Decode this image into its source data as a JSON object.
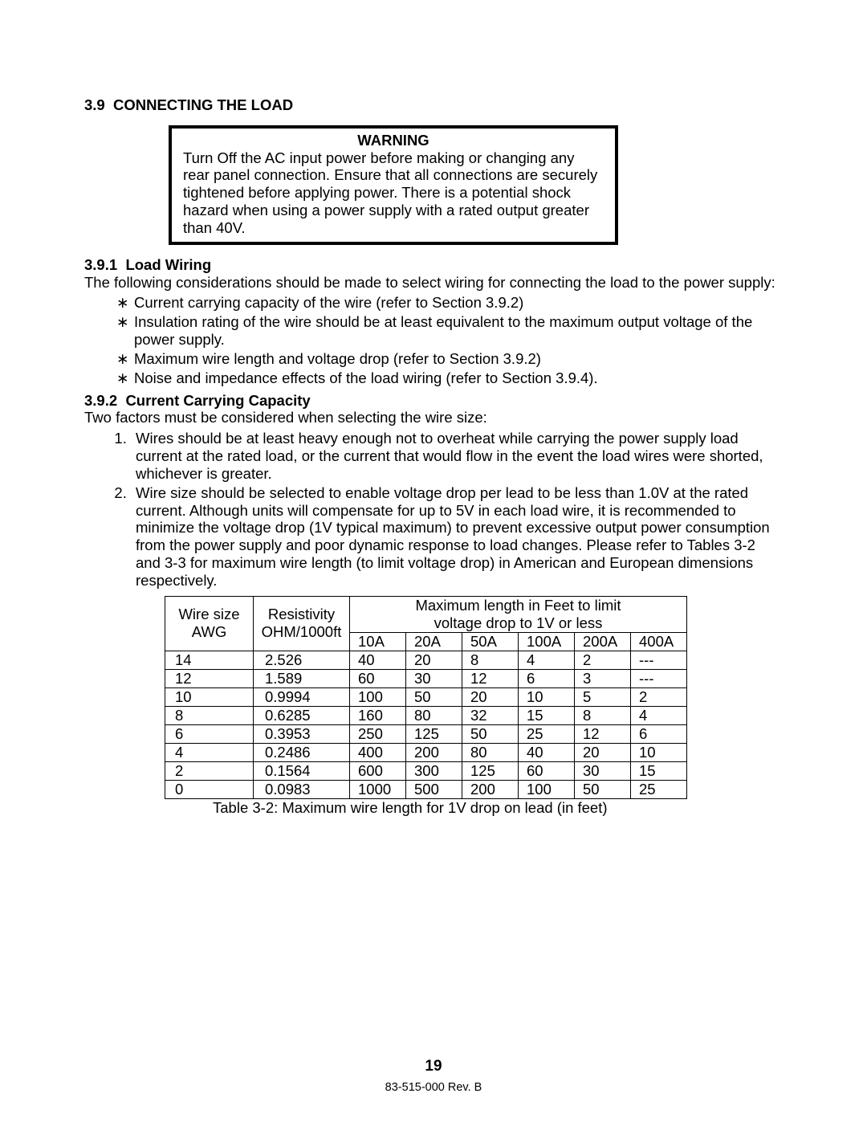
{
  "section": {
    "number": "3.9",
    "title": "CONNECTING THE LOAD"
  },
  "warning": {
    "heading": "WARNING",
    "text": "Turn Off the AC input power before making or changing any rear panel connection. Ensure that all connections are securely tightened before applying power. There is a potential shock hazard when using a power supply with a rated output greater than 40V."
  },
  "sub1": {
    "number": "3.9.1",
    "title": "Load Wiring",
    "intro": "The following considerations should be made to select wiring for connecting the load to the power supply:",
    "bullets": [
      "Current carrying capacity of the wire (refer to Section 3.9.2)",
      "Insulation rating of the wire should be at least equivalent to the maximum output voltage of the power supply.",
      "Maximum wire length and voltage drop (refer to Section 3.9.2)",
      "Noise and impedance effects of the load wiring (refer to Section 3.9.4)."
    ]
  },
  "sub2": {
    "number": "3.9.2",
    "title": "Current Carrying Capacity",
    "intro": "Two factors must be considered when selecting the wire size:",
    "items": [
      "Wires should be at least heavy enough not to overheat while carrying the power supply load current at the rated load, or the current that would flow in the event the load wires were shorted, whichever is greater.",
      "Wire size should be selected to enable voltage drop per lead to be less than 1.0V at the rated current. Although units will compensate for up to 5V in each load wire, it is recommended to minimize the voltage drop (1V typical maximum) to prevent excessive output power consumption from the power supply and poor dynamic response to load changes. Please refer to Tables 3-2 and 3-3 for maximum wire length (to limit voltage drop) in American and European dimensions respectively."
    ]
  },
  "table": {
    "caption": "Table 3-2: Maximum wire length for 1V drop on lead (in feet)",
    "col_awg_l1": "Wire size",
    "col_awg_l2": "AWG",
    "col_res_l1": "Resistivity",
    "col_res_l2": "OHM/1000ft",
    "span_l1": "Maximum length in Feet to limit",
    "span_l2": "voltage drop to 1V or less",
    "currents": [
      "10A",
      "20A",
      "50A",
      "100A",
      "200A",
      "400A"
    ],
    "rows": [
      {
        "awg": "14",
        "res": "2.526",
        "v": [
          "40",
          "20",
          "8",
          "4",
          "2",
          "---"
        ]
      },
      {
        "awg": "12",
        "res": "1.589",
        "v": [
          "60",
          "30",
          "12",
          "6",
          "3",
          "---"
        ]
      },
      {
        "awg": "10",
        "res": "0.9994",
        "v": [
          "100",
          "50",
          "20",
          "10",
          "5",
          "2"
        ]
      },
      {
        "awg": "8",
        "res": "0.6285",
        "v": [
          "160",
          "80",
          "32",
          "15",
          "8",
          "4"
        ]
      },
      {
        "awg": "6",
        "res": "0.3953",
        "v": [
          "250",
          "125",
          "50",
          "25",
          "12",
          "6"
        ]
      },
      {
        "awg": "4",
        "res": "0.2486",
        "v": [
          "400",
          "200",
          "80",
          "40",
          "20",
          "10"
        ]
      },
      {
        "awg": "2",
        "res": "0.1564",
        "v": [
          "600",
          "300",
          "125",
          "60",
          "30",
          "15"
        ]
      },
      {
        "awg": "0",
        "res": "0.0983",
        "v": [
          "1000",
          "500",
          "200",
          "100",
          "50",
          "25"
        ]
      }
    ]
  },
  "footer": {
    "page": "19",
    "rev": "83-515-000 Rev. B"
  }
}
